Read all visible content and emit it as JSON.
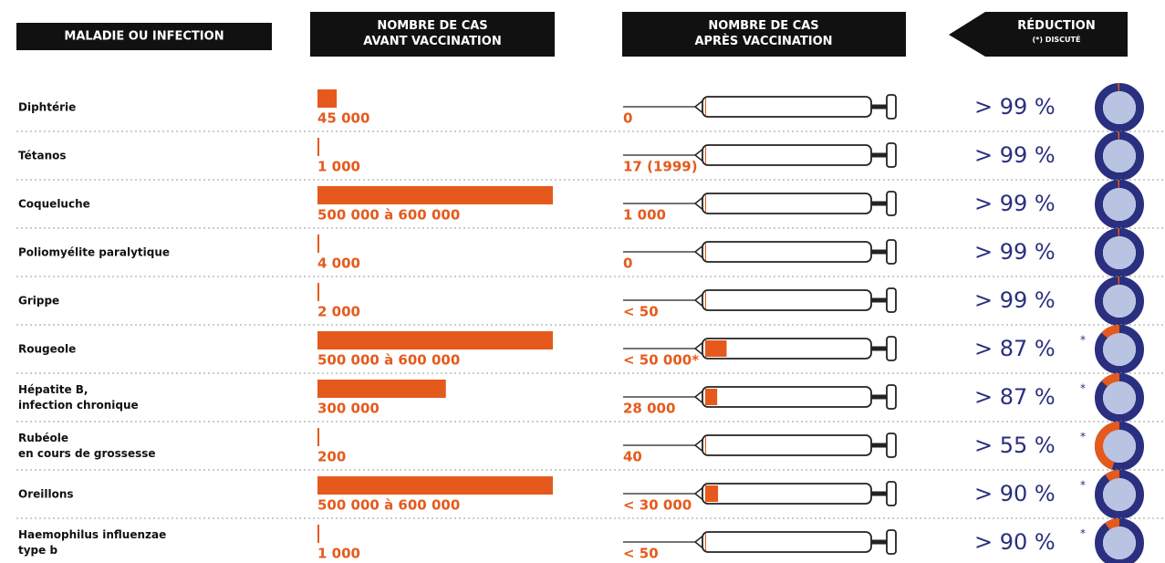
{
  "header": {
    "disease": [
      "MALADIE OU INFECTION"
    ],
    "before": [
      "NOMBRE DE CAS",
      "AVANT VACCINATION"
    ],
    "after": [
      "NOMBRE DE CAS",
      "APRÈS VACCINATION"
    ],
    "reduction": [
      "RÉDUCTION",
      "(*) DISCUTÉ"
    ]
  },
  "rows": [
    {
      "name": [
        "Diphtérie"
      ],
      "before": "45 000",
      "before_value": 45000,
      "after": "0",
      "after_value": 0,
      "reduction": "> 99  %",
      "reduction_value": 99
    },
    {
      "name": [
        "Tétanos"
      ],
      "before": "1 000",
      "before_value": 1000,
      "after": "17 (1999)",
      "after_value": 17,
      "reduction": "> 99 %",
      "reduction_value": 99
    },
    {
      "name": [
        "Coqueluche"
      ],
      "before": "500 000 à 600 000",
      "before_value": 550000,
      "after": "1 000",
      "after_value": 1000,
      "reduction": "> 99 %",
      "reduction_value": 99
    },
    {
      "name": [
        "Poliomyélite paralytique"
      ],
      "before": "4 000",
      "before_value": 4000,
      "after": "0",
      "after_value": 0,
      "reduction": "> 99 %",
      "reduction_value": 99
    },
    {
      "name": [
        "Grippe"
      ],
      "before": "2 000",
      "before_value": 2000,
      "after": "< 50",
      "after_value": 50,
      "reduction": "> 99 %",
      "reduction_value": 99
    },
    {
      "name": [
        "Rougeole"
      ],
      "before": "500 000 à 600 000",
      "before_value": 550000,
      "after": "< 50 000*",
      "after_value": 50000,
      "reduction": "> 87 %",
      "reduction_value": 87,
      "note": "*"
    },
    {
      "name": [
        "Hépatite B,",
        "infection chronique"
      ],
      "before": "300 000",
      "before_value": 300000,
      "after": "28 000",
      "after_value": 28000,
      "reduction": "> 87 %",
      "reduction_value": 87,
      "note": "*"
    },
    {
      "name": [
        "Rubéole",
        "en cours de grossesse"
      ],
      "before": "200",
      "before_value": 200,
      "after": "40",
      "after_value": 40,
      "reduction": "> 55 %",
      "reduction_value": 55,
      "note": "*"
    },
    {
      "name": [
        "Oreillons"
      ],
      "before": "500 000 à 600 000",
      "before_value": 550000,
      "after": "< 30 000",
      "after_value": 30000,
      "reduction": "> 90 %",
      "reduction_value": 90,
      "note": "*"
    },
    {
      "name": [
        "Haemophilus influenzae",
        "type b"
      ],
      "before": "1 000",
      "before_value": 1000,
      "after": "< 50",
      "after_value": 50,
      "reduction": "> 90 %",
      "reduction_value": 90,
      "note": "*"
    }
  ]
}
